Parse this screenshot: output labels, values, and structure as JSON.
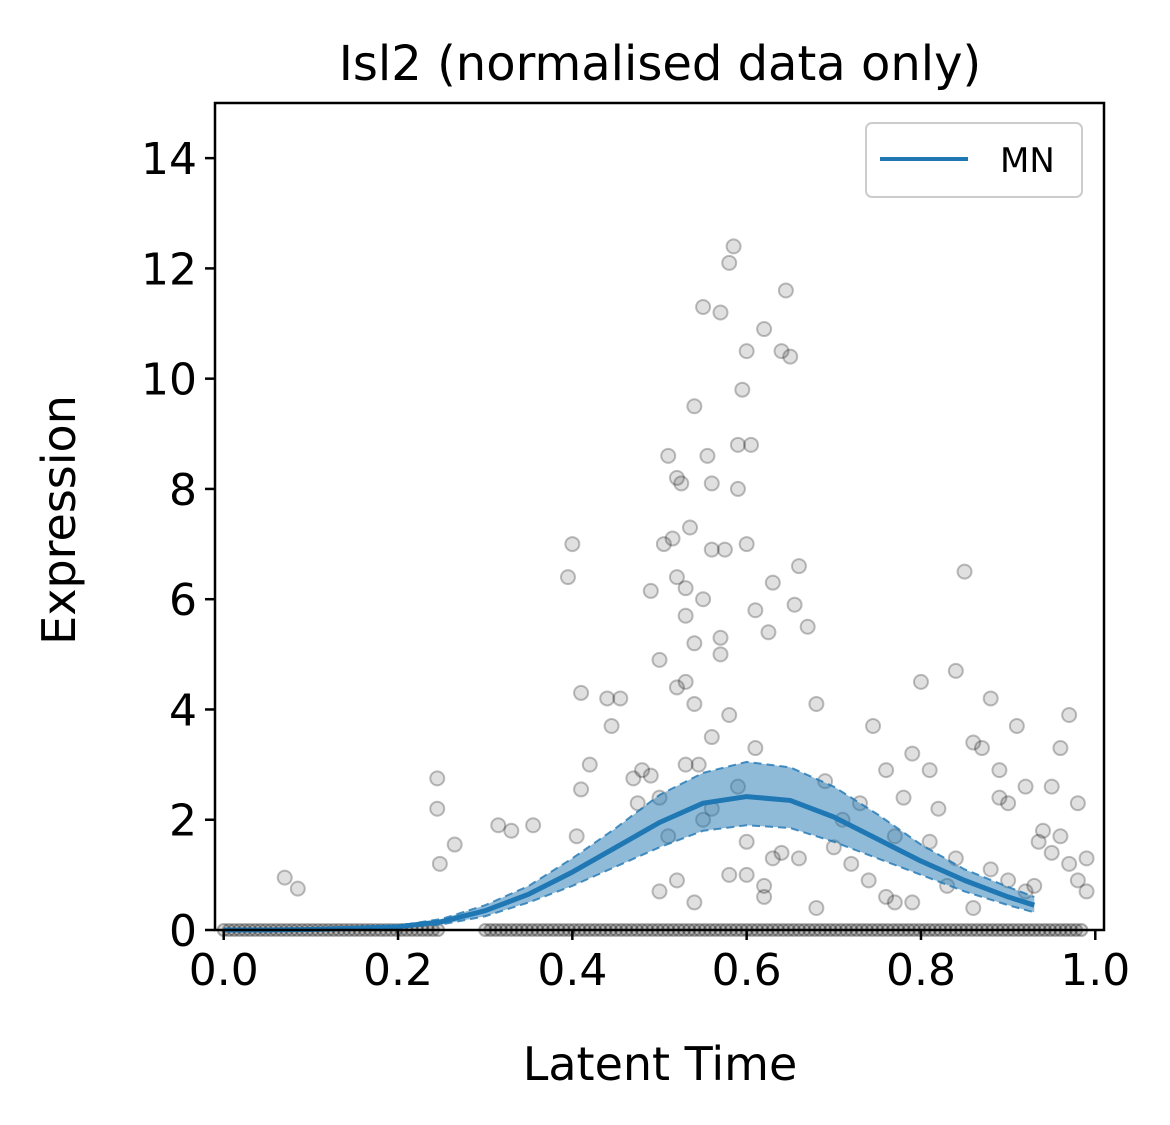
{
  "chart_data": {
    "type": "line",
    "title": "Isl2 (normalised data only)",
    "xlabel": "Latent Time",
    "ylabel": "Expression",
    "xlim": [
      -0.01,
      1.01
    ],
    "ylim": [
      0,
      15
    ],
    "xticks": [
      0.0,
      0.2,
      0.4,
      0.6,
      0.8,
      1.0
    ],
    "xtick_labels": [
      "0.0",
      "0.2",
      "0.4",
      "0.6",
      "0.8",
      "1.0"
    ],
    "yticks": [
      0,
      2,
      4,
      6,
      8,
      10,
      12,
      14
    ],
    "ytick_labels": [
      "0",
      "2",
      "4",
      "6",
      "8",
      "10",
      "12",
      "14"
    ],
    "grid": false,
    "legend": {
      "position": "top-right",
      "entries": [
        "MN"
      ]
    },
    "colors": {
      "line": "#1f77b4",
      "band": "#1f77b4",
      "points": "#000000"
    },
    "series": [
      {
        "name": "MN",
        "x": [
          0.0,
          0.05,
          0.1,
          0.15,
          0.2,
          0.25,
          0.3,
          0.35,
          0.4,
          0.45,
          0.5,
          0.55,
          0.6,
          0.65,
          0.7,
          0.75,
          0.8,
          0.85,
          0.9,
          0.93
        ],
        "y": [
          0.0,
          0.0,
          0.01,
          0.03,
          0.06,
          0.15,
          0.35,
          0.65,
          1.05,
          1.5,
          1.95,
          2.3,
          2.42,
          2.35,
          2.05,
          1.65,
          1.25,
          0.9,
          0.6,
          0.45
        ],
        "lower": [
          0.0,
          0.0,
          0.01,
          0.02,
          0.05,
          0.1,
          0.25,
          0.5,
          0.8,
          1.15,
          1.5,
          1.8,
          1.9,
          1.85,
          1.6,
          1.3,
          1.0,
          0.7,
          0.45,
          0.32
        ],
        "upper": [
          0.0,
          0.0,
          0.02,
          0.04,
          0.08,
          0.2,
          0.45,
          0.8,
          1.3,
          1.85,
          2.45,
          2.85,
          3.05,
          2.95,
          2.6,
          2.1,
          1.55,
          1.1,
          0.78,
          0.6
        ]
      }
    ],
    "points": {
      "x": [
        0.07,
        0.085,
        0.245,
        0.245,
        0.248,
        0.265,
        0.315,
        0.33,
        0.355,
        0.395,
        0.4,
        0.405,
        0.41,
        0.41,
        0.42,
        0.44,
        0.445,
        0.455,
        0.47,
        0.475,
        0.48,
        0.49,
        0.5,
        0.505,
        0.51,
        0.515,
        0.52,
        0.52,
        0.525,
        0.53,
        0.53,
        0.535,
        0.54,
        0.54,
        0.545,
        0.55,
        0.555,
        0.56,
        0.56,
        0.57,
        0.575,
        0.58,
        0.585,
        0.59,
        0.59,
        0.595,
        0.6,
        0.6,
        0.605,
        0.61,
        0.62,
        0.625,
        0.63,
        0.64,
        0.645,
        0.65,
        0.655,
        0.66,
        0.67,
        0.68,
        0.69,
        0.7,
        0.71,
        0.72,
        0.73,
        0.745,
        0.76,
        0.77,
        0.78,
        0.79,
        0.8,
        0.81,
        0.82,
        0.84,
        0.85,
        0.86,
        0.87,
        0.88,
        0.89,
        0.9,
        0.91,
        0.92,
        0.935,
        0.95,
        0.96,
        0.97,
        0.98,
        0.99,
        0.52,
        0.54,
        0.56,
        0.58,
        0.5,
        0.53,
        0.57,
        0.61,
        0.55,
        0.6,
        0.63,
        0.52,
        0.5,
        0.54,
        0.58,
        0.62,
        0.51,
        0.56,
        0.59,
        0.64,
        0.49,
        0.66,
        0.53,
        0.57,
        0.55,
        0.6,
        0.62,
        0.68,
        0.74,
        0.77,
        0.83,
        0.88,
        0.92,
        0.95,
        0.98,
        0.76,
        0.81,
        0.86,
        0.9,
        0.94,
        0.97,
        0.79,
        0.84,
        0.89,
        0.93,
        0.96,
        0.99
      ],
      "y": [
        0.95,
        0.75,
        2.75,
        2.2,
        1.2,
        1.55,
        1.9,
        1.8,
        1.9,
        6.4,
        7.0,
        1.7,
        4.3,
        2.55,
        3.0,
        4.2,
        3.7,
        4.2,
        2.75,
        2.3,
        2.9,
        6.15,
        4.9,
        7.0,
        8.6,
        7.1,
        6.4,
        8.2,
        8.1,
        6.2,
        4.5,
        7.3,
        5.2,
        9.5,
        3.0,
        11.3,
        8.6,
        8.1,
        6.9,
        11.2,
        6.9,
        12.1,
        12.4,
        8.8,
        8.0,
        9.8,
        10.5,
        7.0,
        8.8,
        5.8,
        10.9,
        5.4,
        6.3,
        10.5,
        11.6,
        10.4,
        5.9,
        6.6,
        5.5,
        4.1,
        2.7,
        1.5,
        2.0,
        1.2,
        2.3,
        3.7,
        2.9,
        1.7,
        2.4,
        3.2,
        4.5,
        2.9,
        2.2,
        4.7,
        6.5,
        3.4,
        3.3,
        4.2,
        2.9,
        2.3,
        3.7,
        2.6,
        1.6,
        2.6,
        3.3,
        3.9,
        2.3,
        1.3,
        4.4,
        4.1,
        3.5,
        3.9,
        2.4,
        3.0,
        5.0,
        3.3,
        2.0,
        1.6,
        1.3,
        0.9,
        0.7,
        0.5,
        1.0,
        0.8,
        1.7,
        2.2,
        2.6,
        1.4,
        2.8,
        1.3,
        5.7,
        5.3,
        6.0,
        1.0,
        0.6,
        0.4,
        0.9,
        0.5,
        0.8,
        1.1,
        0.7,
        1.4,
        0.9,
        0.6,
        1.6,
        0.4,
        0.9,
        1.8,
        1.2,
        0.5,
        1.3,
        2.4,
        0.8,
        1.7,
        0.7
      ],
      "zero_band": {
        "x_ranges": [
          [
            0.0,
            0.25
          ],
          [
            0.3,
            0.99
          ]
        ],
        "y": 0.0
      }
    }
  }
}
